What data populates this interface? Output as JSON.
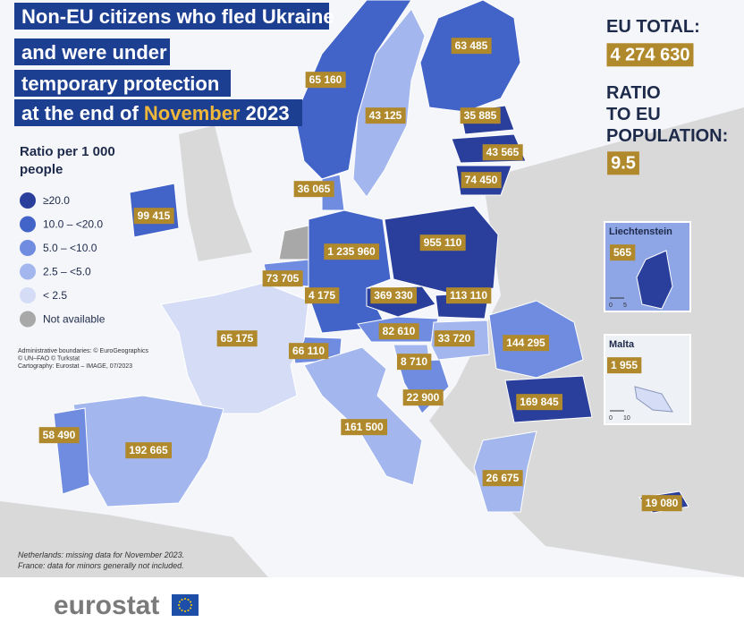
{
  "title": {
    "lines": [
      "Non-EU citizens who fled Ukraine",
      "and were under",
      "temporary protection"
    ],
    "last_line": {
      "prefix": "at the end of",
      "highlight": "November",
      "suffix": "2023"
    }
  },
  "legend": {
    "title_lines": [
      "Ratio per 1 000",
      "people"
    ],
    "items": [
      {
        "label": "≥20.0",
        "color": "#2a3f9c"
      },
      {
        "label": "10.0 – <20.0",
        "color": "#4263c8"
      },
      {
        "label": "5.0 – <10.0",
        "color": "#6f8ce0"
      },
      {
        "label": "2.5 – <5.0",
        "color": "#a3b6ee"
      },
      {
        "label": "< 2.5",
        "color": "#d5ddf6"
      },
      {
        "label": "Not available",
        "color": "#a8a8a8"
      }
    ]
  },
  "eu_total": {
    "label": "EU TOTAL:",
    "value": "4 274 630"
  },
  "ratio": {
    "label_lines": [
      "RATIO",
      "TO EU",
      "POPULATION:"
    ],
    "value": "9.5"
  },
  "regions": [
    {
      "label": "65 160",
      "color": "#4263c8"
    },
    {
      "label": "43 125",
      "color": "#a3b6ee"
    },
    {
      "label": "63 485",
      "color": "#4263c8"
    },
    {
      "label": "35 885",
      "color": "#2a3f9c"
    },
    {
      "label": "43 565",
      "color": "#2a3f9c"
    },
    {
      "label": "74 450",
      "color": "#2a3f9c"
    },
    {
      "label": "36 065",
      "color": "#6f8ce0"
    },
    {
      "label": "99 415",
      "color": "#4263c8"
    },
    {
      "label": null,
      "color": "#a8a8a8"
    },
    {
      "label": "73 705",
      "color": "#6f8ce0"
    },
    {
      "label": "4 175",
      "color": "#6f8ce0"
    },
    {
      "label": "1 235 960",
      "color": "#4263c8"
    },
    {
      "label": "955 110",
      "color": "#2a3f9c"
    },
    {
      "label": "369 330",
      "color": "#2a3f9c"
    },
    {
      "label": "113 110",
      "color": "#2a3f9c"
    },
    {
      "label": "82 610",
      "color": "#6f8ce0"
    },
    {
      "label": "33 720",
      "color": "#a3b6ee"
    },
    {
      "label": "144 295",
      "color": "#6f8ce0"
    },
    {
      "label": "169 845",
      "color": "#2a3f9c"
    },
    {
      "label": "8 710",
      "color": "#a3b6ee"
    },
    {
      "label": "22 900",
      "color": "#6f8ce0"
    },
    {
      "label": "66 110",
      "color": "#6f8ce0"
    },
    {
      "label": "65 175",
      "color": "#d5ddf6"
    },
    {
      "label": "161 500",
      "color": "#a3b6ee"
    },
    {
      "label": "192 665",
      "color": "#a3b6ee"
    },
    {
      "label": "58 490",
      "color": "#6f8ce0"
    },
    {
      "label": "26 675",
      "color": "#a3b6ee"
    },
    {
      "label": "19 080",
      "color": "#2a3f9c"
    }
  ],
  "insets": [
    {
      "title": "Liechtenstein",
      "label": "565",
      "scale": [
        "0",
        "5"
      ]
    },
    {
      "title": "Malta",
      "label": "1 955",
      "scale": [
        "0",
        "10"
      ]
    }
  ],
  "credits": [
    "Administrative boundaries: © EuroGeographics",
    "© UN–FAO © Turkstat",
    "Cartography: Eurostat – IMAGE, 07/2023"
  ],
  "notes": [
    "Netherlands: missing data for November 2023.",
    "France: data for minors generally not included."
  ],
  "logo": "eurostat"
}
